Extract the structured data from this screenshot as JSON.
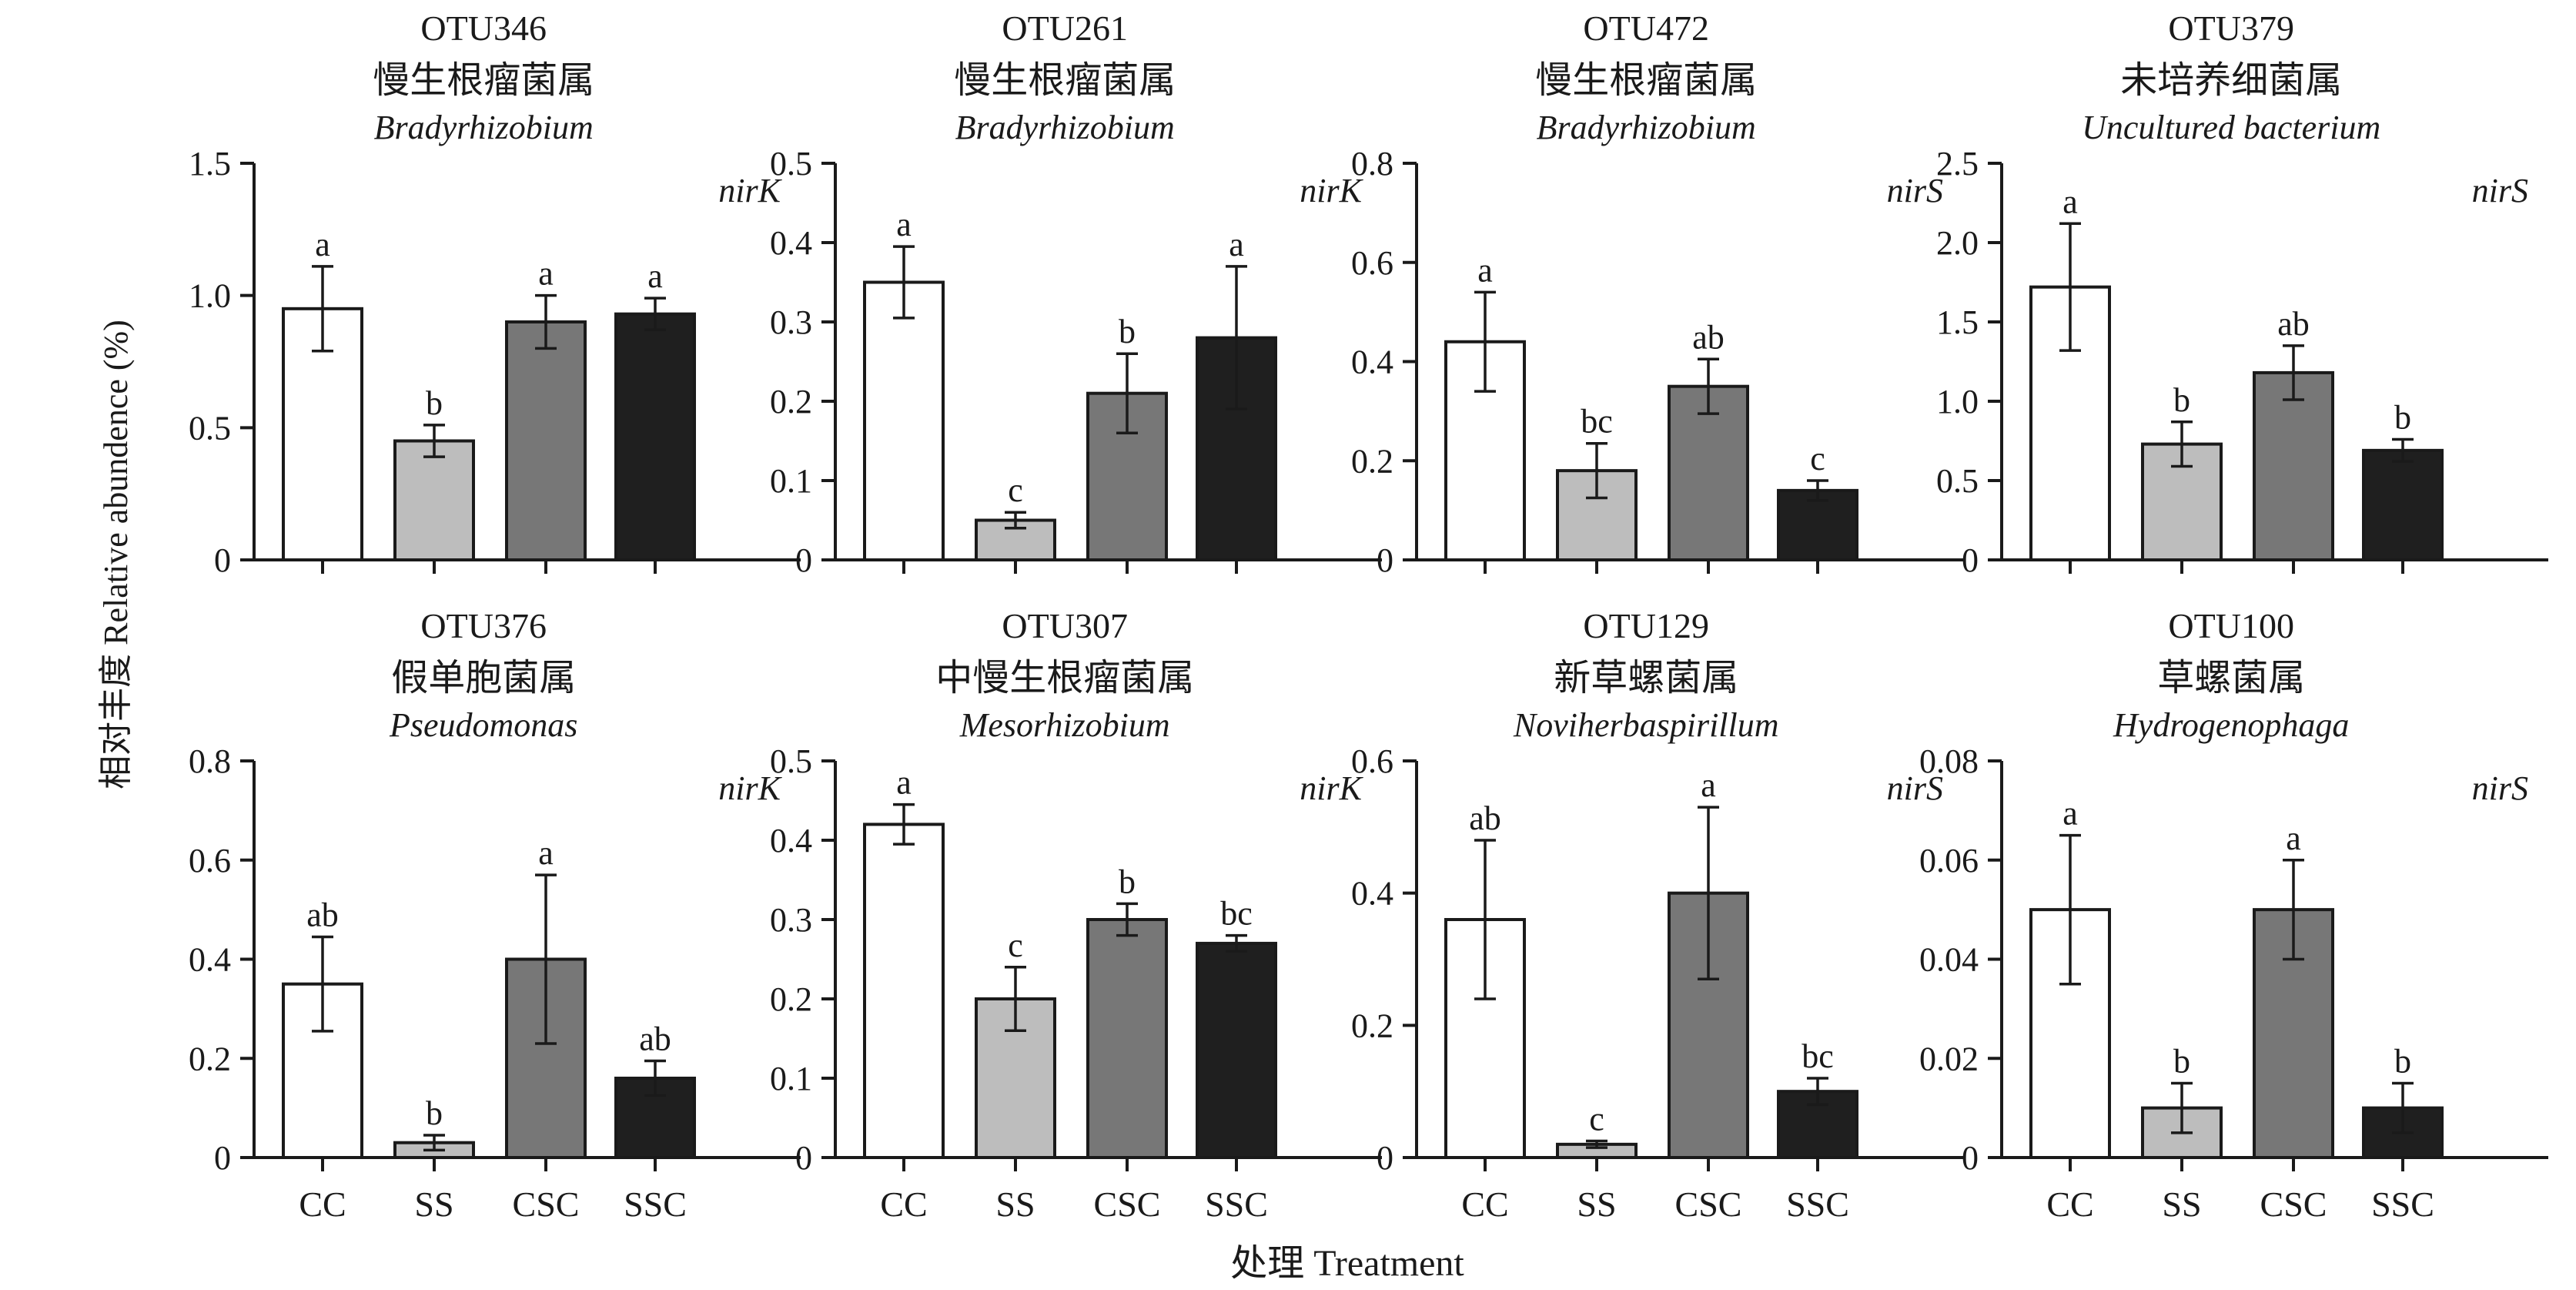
{
  "figure": {
    "ylabel": "相对丰度 Relative abundence (%)",
    "xlabel": "处理 Treatment"
  },
  "colors": {
    "CC": "#ffffff",
    "SS": "#bdbdbd",
    "CSC": "#777777",
    "SSC": "#1f1f1f",
    "stroke": "#1a1a1a"
  },
  "chart_data": [
    {
      "type": "bar",
      "otu": "OTU346",
      "genus_cn": "慢生根瘤菌属",
      "genus": "Bradyrhizobium",
      "gene": "nirK",
      "categories": [
        "CC",
        "SS",
        "CSC",
        "SSC"
      ],
      "values": [
        0.95,
        0.45,
        0.9,
        0.93
      ],
      "errors": [
        0.16,
        0.06,
        0.1,
        0.06
      ],
      "letters": [
        "a",
        "b",
        "a",
        "a"
      ],
      "ylim": [
        0,
        1.5
      ],
      "yticks": [
        "0",
        "0.5",
        "1.0",
        "1.5"
      ]
    },
    {
      "type": "bar",
      "otu": "OTU261",
      "genus_cn": "慢生根瘤菌属",
      "genus": "Bradyrhizobium",
      "gene": "nirK",
      "categories": [
        "CC",
        "SS",
        "CSC",
        "SSC"
      ],
      "values": [
        0.35,
        0.05,
        0.21,
        0.28
      ],
      "errors": [
        0.045,
        0.01,
        0.05,
        0.09
      ],
      "letters": [
        "a",
        "c",
        "b",
        "a"
      ],
      "ylim": [
        0,
        0.5
      ],
      "yticks": [
        "0",
        "0.1",
        "0.2",
        "0.3",
        "0.4",
        "0.5"
      ]
    },
    {
      "type": "bar",
      "otu": "OTU472",
      "genus_cn": "慢生根瘤菌属",
      "genus": "Bradyrhizobium",
      "gene": "nirS",
      "categories": [
        "CC",
        "SS",
        "CSC",
        "SSC"
      ],
      "values": [
        0.44,
        0.18,
        0.35,
        0.14
      ],
      "errors": [
        0.1,
        0.055,
        0.055,
        0.02
      ],
      "letters": [
        "a",
        "bc",
        "ab",
        "c"
      ],
      "ylim": [
        0,
        0.8
      ],
      "yticks": [
        "0",
        "0.2",
        "0.4",
        "0.6",
        "0.8"
      ]
    },
    {
      "type": "bar",
      "otu": "OTU379",
      "genus_cn": "未培养细菌属",
      "genus": "Uncultured bacterium",
      "gene": "nirS",
      "categories": [
        "CC",
        "SS",
        "CSC",
        "SSC"
      ],
      "values": [
        1.72,
        0.73,
        1.18,
        0.69
      ],
      "errors": [
        0.4,
        0.14,
        0.17,
        0.07
      ],
      "letters": [
        "a",
        "b",
        "ab",
        "b"
      ],
      "ylim": [
        0,
        2.5
      ],
      "yticks": [
        "0",
        "0.5",
        "1.0",
        "1.5",
        "2.0",
        "2.5"
      ]
    },
    {
      "type": "bar",
      "otu": "OTU376",
      "genus_cn": "假单胞菌属",
      "genus": "Pseudomonas",
      "gene": "nirK",
      "categories": [
        "CC",
        "SS",
        "CSC",
        "SSC"
      ],
      "values": [
        0.35,
        0.03,
        0.4,
        0.16
      ],
      "errors": [
        0.095,
        0.015,
        0.17,
        0.035
      ],
      "letters": [
        "ab",
        "b",
        "a",
        "ab"
      ],
      "ylim": [
        0,
        0.8
      ],
      "yticks": [
        "0",
        "0.2",
        "0.4",
        "0.6",
        "0.8"
      ]
    },
    {
      "type": "bar",
      "otu": "OTU307",
      "genus_cn": "中慢生根瘤菌属",
      "genus": "Mesorhizobium",
      "gene": "nirK",
      "categories": [
        "CC",
        "SS",
        "CSC",
        "SSC"
      ],
      "values": [
        0.42,
        0.2,
        0.3,
        0.27
      ],
      "errors": [
        0.025,
        0.04,
        0.02,
        0.01
      ],
      "letters": [
        "a",
        "c",
        "b",
        "bc"
      ],
      "ylim": [
        0,
        0.5
      ],
      "yticks": [
        "0",
        "0.1",
        "0.2",
        "0.3",
        "0.4",
        "0.5"
      ]
    },
    {
      "type": "bar",
      "otu": "OTU129",
      "genus_cn": "新草螺菌属",
      "genus": "Noviherbaspirillum",
      "gene": "nirS",
      "categories": [
        "CC",
        "SS",
        "CSC",
        "SSC"
      ],
      "values": [
        0.36,
        0.02,
        0.4,
        0.1
      ],
      "errors": [
        0.12,
        0.005,
        0.13,
        0.02
      ],
      "letters": [
        "ab",
        "c",
        "a",
        "bc"
      ],
      "ylim": [
        0,
        0.6
      ],
      "yticks": [
        "0",
        "0.2",
        "0.4",
        "0.6"
      ]
    },
    {
      "type": "bar",
      "otu": "OTU100",
      "genus_cn": "草螺菌属",
      "genus": "Hydrogenophaga",
      "gene": "nirS",
      "categories": [
        "CC",
        "SS",
        "CSC",
        "SSC"
      ],
      "values": [
        0.05,
        0.01,
        0.05,
        0.01
      ],
      "errors": [
        0.015,
        0.005,
        0.01,
        0.005
      ],
      "letters": [
        "a",
        "b",
        "a",
        "b"
      ],
      "ylim": [
        0,
        0.08
      ],
      "yticks": [
        "0",
        "0.02",
        "0.04",
        "0.06",
        "0.08"
      ]
    }
  ]
}
